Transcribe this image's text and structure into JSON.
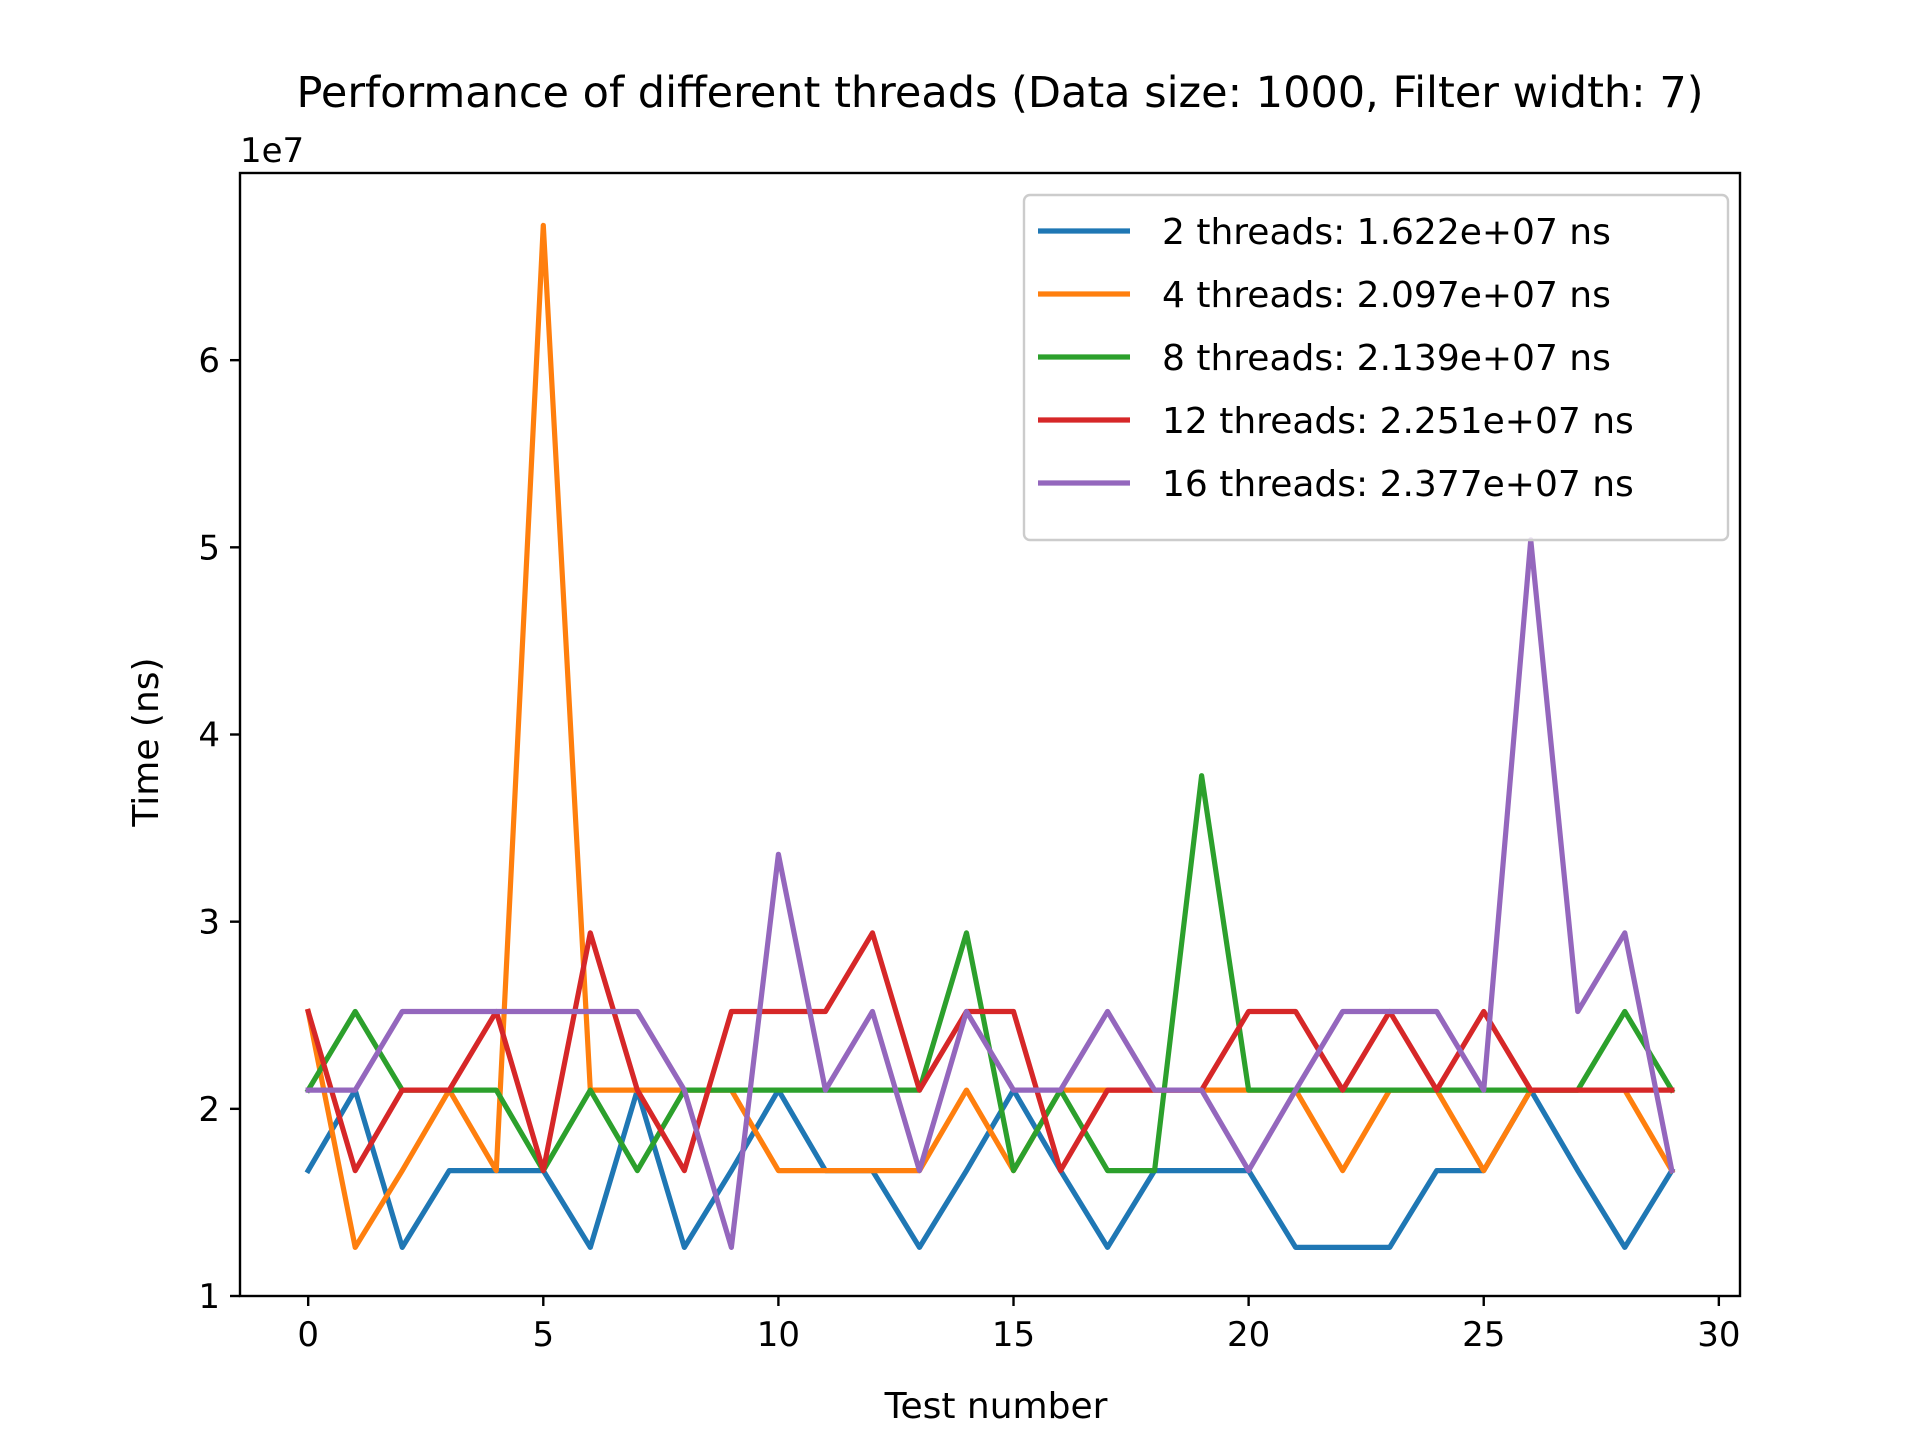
{
  "chart_data": {
    "type": "line",
    "title": "Performance of different threads (Data size: 1000, Filter width: 7)",
    "xlabel": "Test number",
    "ylabel": "Time (ns)",
    "y_offset_label": "1e7",
    "xlim": [
      -1.45,
      30.45
    ],
    "ylim": [
      1.0,
      7.0
    ],
    "x_ticks": [
      0,
      5,
      10,
      15,
      20,
      25,
      30
    ],
    "x_tick_labels": [
      "0",
      "5",
      "10",
      "15",
      "20",
      "25",
      "30"
    ],
    "y_ticks": [
      1,
      2,
      3,
      4,
      5,
      6
    ],
    "y_tick_labels": [
      "1",
      "2",
      "3",
      "4",
      "5",
      "6"
    ],
    "grid": false,
    "legend_position": "top-right",
    "x": [
      0,
      1,
      2,
      3,
      4,
      5,
      6,
      7,
      8,
      9,
      10,
      11,
      12,
      13,
      14,
      15,
      16,
      17,
      18,
      19,
      20,
      21,
      22,
      23,
      24,
      25,
      26,
      27,
      28,
      29
    ],
    "series": [
      {
        "name": "2 threads: 1.622e+07 ns",
        "color": "#1f77b4",
        "values": [
          1.67,
          2.1,
          1.26,
          1.67,
          1.67,
          1.67,
          1.26,
          2.1,
          1.26,
          1.67,
          2.1,
          1.67,
          1.67,
          1.26,
          1.67,
          2.1,
          1.67,
          1.26,
          1.67,
          1.67,
          1.67,
          1.26,
          1.26,
          1.26,
          1.67,
          1.67,
          2.1,
          1.67,
          1.26,
          1.67
        ]
      },
      {
        "name": "4 threads: 2.097e+07 ns",
        "color": "#ff7f0e",
        "values": [
          2.52,
          1.26,
          1.67,
          2.1,
          1.67,
          6.72,
          2.1,
          2.1,
          2.1,
          2.1,
          1.67,
          1.67,
          1.67,
          1.67,
          2.1,
          1.67,
          2.1,
          2.1,
          2.1,
          2.1,
          2.1,
          2.1,
          1.67,
          2.1,
          2.1,
          1.67,
          2.1,
          2.1,
          2.1,
          1.67
        ]
      },
      {
        "name": "8 threads: 2.139e+07 ns",
        "color": "#2ca02c",
        "values": [
          2.1,
          2.52,
          2.1,
          2.1,
          2.1,
          1.67,
          2.1,
          1.67,
          2.1,
          2.1,
          2.1,
          2.1,
          2.1,
          2.1,
          2.94,
          1.67,
          2.1,
          1.67,
          1.67,
          3.78,
          2.1,
          2.1,
          2.1,
          2.1,
          2.1,
          2.1,
          2.1,
          2.1,
          2.52,
          2.1
        ]
      },
      {
        "name": "12 threads: 2.251e+07 ns",
        "color": "#d62728",
        "values": [
          2.52,
          1.67,
          2.1,
          2.1,
          2.52,
          1.67,
          2.94,
          2.1,
          1.67,
          2.52,
          2.52,
          2.52,
          2.94,
          2.1,
          2.52,
          2.52,
          1.67,
          2.1,
          2.1,
          2.1,
          2.52,
          2.52,
          2.1,
          2.52,
          2.1,
          2.52,
          2.1,
          2.1,
          2.1,
          2.1
        ]
      },
      {
        "name": "16 threads: 2.377e+07 ns",
        "color": "#9467bd",
        "values": [
          2.1,
          2.1,
          2.52,
          2.52,
          2.52,
          2.52,
          2.52,
          2.52,
          2.1,
          1.26,
          3.36,
          2.1,
          2.52,
          1.67,
          2.52,
          2.1,
          2.1,
          2.52,
          2.1,
          2.1,
          1.67,
          2.1,
          2.52,
          2.52,
          2.52,
          2.1,
          5.04,
          2.52,
          2.94,
          1.67
        ]
      }
    ]
  }
}
